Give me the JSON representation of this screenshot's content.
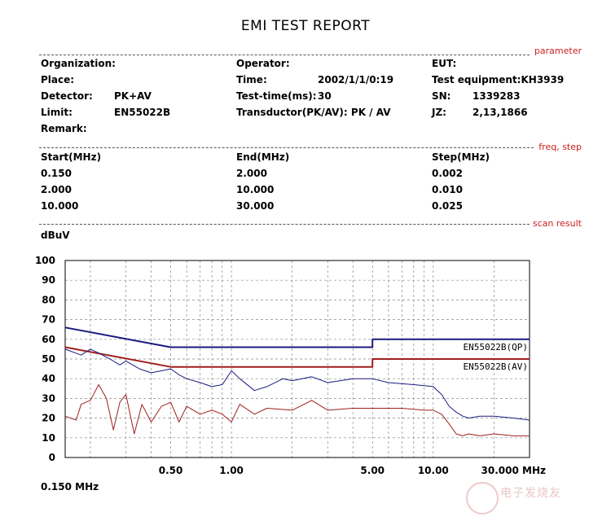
{
  "header": {
    "title": "EMI TEST REPORT"
  },
  "sections": {
    "parameter": "parameter",
    "freq_step": "freq, step",
    "scan_result": "scan result"
  },
  "params": {
    "organization": "Organization:",
    "place": "Place:",
    "detector_label": "Detector:",
    "detector_value": "PK+AV",
    "limit_label": "Limit:",
    "limit_value": "EN55022B",
    "remark": "Remark:",
    "operator": "Operator:",
    "time_label": "Time:",
    "time_value": "2002/1/1/0:19",
    "testtime_label": "Test-time(ms):",
    "testtime_value": "30",
    "transductor": "Transductor(PK/AV): PK  /  AV",
    "eut": "EUT:",
    "equipment": "Test equipment:KH3939",
    "sn_label": "SN:",
    "sn_value": "1339283",
    "jz_label": "JZ:",
    "jz_value": "2,13,1866"
  },
  "freq_table": {
    "headers": [
      "Start(MHz)",
      "End(MHz)",
      "Step(MHz)"
    ],
    "rows": [
      [
        "0.150",
        "2.000",
        "0.002"
      ],
      [
        "2.000",
        "10.000",
        "0.010"
      ],
      [
        "10.000",
        "30.000",
        "0.025"
      ]
    ]
  },
  "colors": {
    "qp": "#1a1a80",
    "av": "#a01e1e",
    "grid": "#888888",
    "section": "#cc2020"
  },
  "watermark": "电子发烧友",
  "chart_data": {
    "type": "line",
    "title": "",
    "ylabel": "dBuV",
    "xlabel": "",
    "x_scale": "log",
    "xlim": [
      0.15,
      30
    ],
    "ylim": [
      0,
      100
    ],
    "y_ticks": [
      "100",
      "90",
      "80",
      "70",
      "60",
      "50",
      "40",
      "30",
      "20",
      "10",
      "0"
    ],
    "x_ticks": [
      {
        "label": "0.50",
        "x": 0.5
      },
      {
        "label": "1.00",
        "x": 1.0
      },
      {
        "label": "5.00",
        "x": 5.0
      },
      {
        "label": "10.00",
        "x": 10.0
      },
      {
        "label": "30.000 MHz",
        "x": 30
      }
    ],
    "x_start_label": "0.150 MHz",
    "grid": "dashed, log",
    "series": [
      {
        "name": "EN55022B(QP)",
        "kind": "limit",
        "x": [
          0.15,
          0.5,
          5,
          5,
          30
        ],
        "y": [
          66,
          56,
          56,
          60,
          60
        ]
      },
      {
        "name": "EN55022B(AV)",
        "kind": "limit",
        "x": [
          0.15,
          0.5,
          5,
          5,
          30
        ],
        "y": [
          56,
          46,
          46,
          50,
          50
        ]
      },
      {
        "kind": "measured",
        "x": [
          0.15,
          0.18,
          0.2,
          0.22,
          0.25,
          0.28,
          0.3,
          0.35,
          0.4,
          0.45,
          0.5,
          0.55,
          0.6,
          0.7,
          0.8,
          0.9,
          1.0,
          1.1,
          1.3,
          1.5,
          1.8,
          2.0,
          2.5,
          3.0,
          4.0,
          5.0,
          6.0,
          8.0,
          10.0,
          11.0,
          12.0,
          13.0,
          14.0,
          15.0,
          17.0,
          20.0,
          25.0,
          30.0
        ],
        "y": [
          55,
          52,
          55,
          53,
          50,
          47,
          49,
          45,
          43,
          44,
          45,
          42,
          40,
          38,
          36,
          37,
          44,
          40,
          34,
          36,
          40,
          39,
          41,
          38,
          40,
          40,
          38,
          37,
          36,
          32,
          26,
          23,
          21,
          20,
          21,
          21,
          20,
          19
        ]
      },
      {
        "kind": "measured",
        "x": [
          0.15,
          0.17,
          0.18,
          0.2,
          0.22,
          0.24,
          0.26,
          0.28,
          0.3,
          0.33,
          0.36,
          0.4,
          0.45,
          0.5,
          0.55,
          0.6,
          0.7,
          0.8,
          0.9,
          1.0,
          1.1,
          1.3,
          1.5,
          2.0,
          2.5,
          3.0,
          4.0,
          5.0,
          7.0,
          9.0,
          10.0,
          11.0,
          12.0,
          13.0,
          14.0,
          15.0,
          17.0,
          20.0,
          25.0,
          30.0
        ],
        "y": [
          21,
          19,
          27,
          29,
          37,
          30,
          14,
          28,
          32,
          12,
          27,
          18,
          26,
          28,
          18,
          26,
          22,
          24,
          22,
          18,
          27,
          22,
          25,
          24,
          29,
          24,
          25,
          25,
          25,
          24,
          24,
          22,
          17,
          12,
          11,
          12,
          11,
          12,
          11,
          11
        ]
      }
    ]
  }
}
